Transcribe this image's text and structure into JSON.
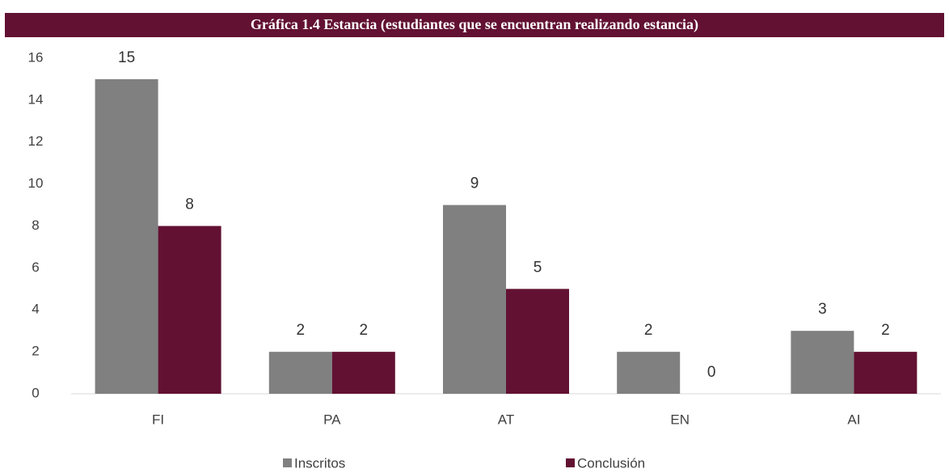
{
  "chart_data": {
    "type": "bar",
    "title": "Gráfica  1.4 Estancia (estudiantes que se encuentran realizando estancia)",
    "categories": [
      "FI",
      "PA",
      "AT",
      "EN",
      "AI"
    ],
    "series": [
      {
        "name": "Inscritos",
        "color": "#808080",
        "values": [
          15,
          2,
          9,
          2,
          3
        ]
      },
      {
        "name": "Conclusión",
        "color": "#621132",
        "values": [
          8,
          2,
          5,
          0,
          2
        ]
      }
    ],
    "ylim": [
      0,
      16
    ],
    "yticks": [
      0,
      2,
      4,
      6,
      8,
      10,
      12,
      14,
      16
    ],
    "grid": false,
    "legend": "bottom",
    "data_labels": true
  }
}
